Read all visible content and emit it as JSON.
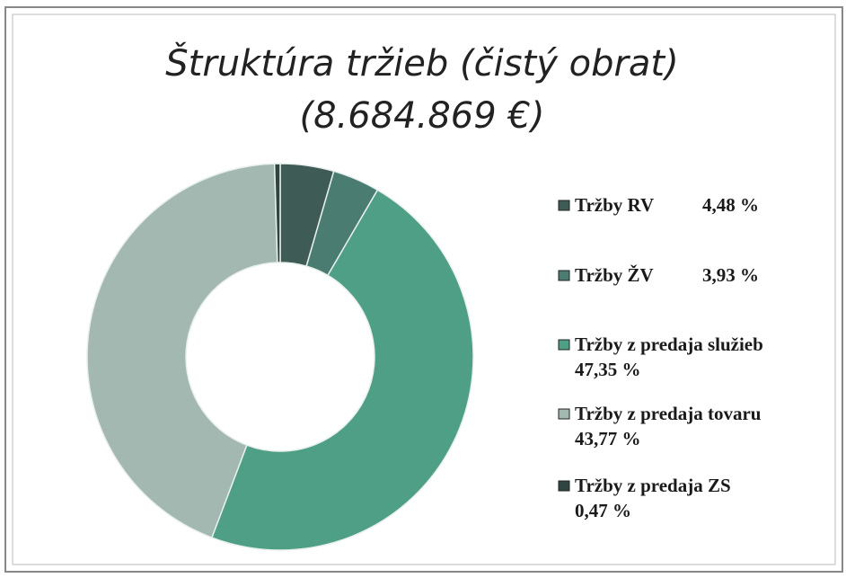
{
  "chart_data": {
    "type": "donut",
    "title": "Štruktúra tržieb (čistý obrat)",
    "subtitle": "(8.684.869 €)",
    "categories": [
      "Tržby RV",
      "Tržby ŽV",
      "Tržby z predaja služieb",
      "Tržby z predaja tovaru",
      "Tržby z predaja ZS"
    ],
    "values": [
      4.48,
      3.93,
      47.35,
      43.77,
      0.47
    ],
    "value_labels": [
      "4,48 %",
      "3,93 %",
      "47,35 %",
      "43,77 %",
      "0,47 %"
    ],
    "colors": [
      "#3e5b56",
      "#4b7c72",
      "#4f9f87",
      "#a2b8b0",
      "#2f4541"
    ],
    "legend": "right"
  }
}
